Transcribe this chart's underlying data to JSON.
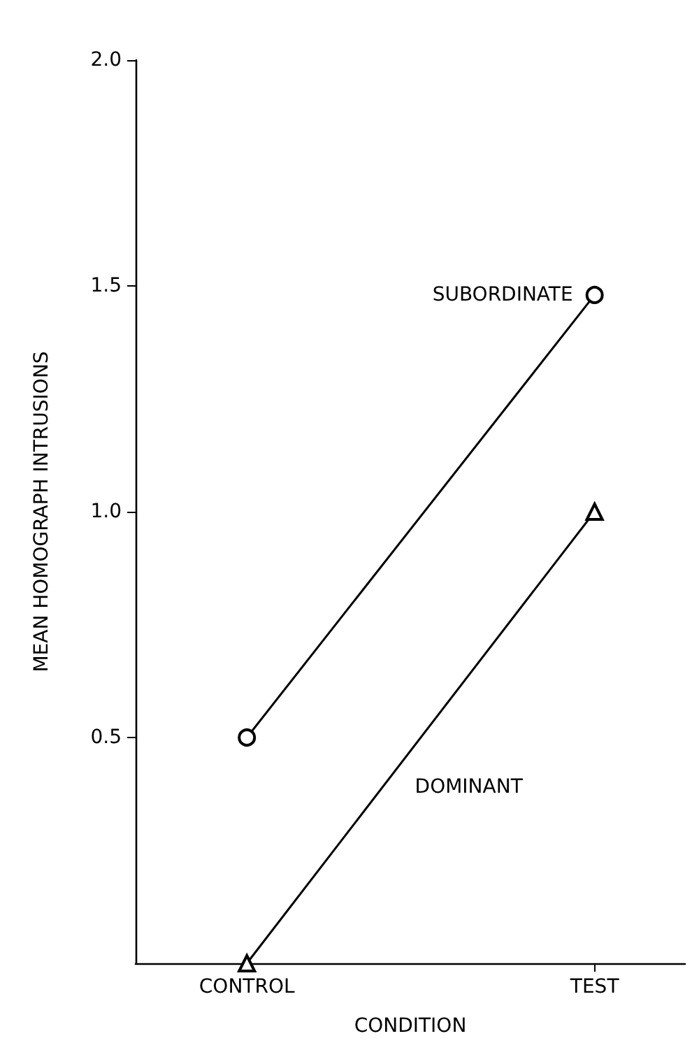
{
  "chart_data": {
    "type": "line",
    "xlabel": "CONDITION",
    "ylabel": "MEAN HOMOGRAPH INTRUSIONS",
    "categories": [
      "CONTROL",
      "TEST"
    ],
    "series": [
      {
        "name": "SUBORDINATE",
        "color": "#000000",
        "marker": "circle",
        "values": [
          0.5,
          1.48
        ]
      },
      {
        "name": "DOMINANT",
        "color": "#000000",
        "marker": "triangle",
        "values": [
          0,
          1.0
        ]
      }
    ],
    "ylim": [
      0,
      2
    ],
    "yticks": [
      {
        "value": 0.5,
        "label": "0.5"
      },
      {
        "value": 1.0,
        "label": "1.0"
      },
      {
        "value": 1.5,
        "label": "1.5"
      },
      {
        "value": 2.0,
        "label": "2.0"
      }
    ],
    "grid": false,
    "legend": false,
    "line_style": "solid"
  }
}
